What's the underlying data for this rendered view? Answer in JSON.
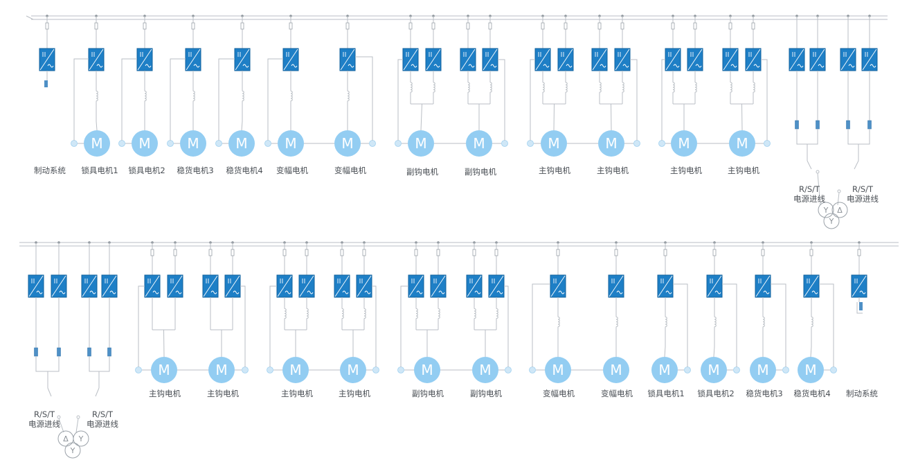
{
  "diagram": {
    "title": "",
    "colors": {
      "line": "#b9bec4",
      "inverter": "#1e7fc6",
      "inverter_edge": "#12609c",
      "motor": "#93cdf2",
      "text": "#4a4f55"
    },
    "motor_symbol": "M",
    "inverter_symbol": "inverter-icon",
    "rows": [
      {
        "name": "top-row",
        "groups": [
          {
            "label": "制动系统",
            "kind": "brake"
          },
          {
            "label": "锁具电机1",
            "kind": "single"
          },
          {
            "label": "锁具电机2",
            "kind": "single"
          },
          {
            "label": "稳货电机3",
            "kind": "single"
          },
          {
            "label": "稳货电机4",
            "kind": "single"
          },
          {
            "label": "变幅电机",
            "kind": "single"
          },
          {
            "label": "变幅电机",
            "kind": "single"
          },
          {
            "label": "副钩电机",
            "kind": "double"
          },
          {
            "label": "副钩电机",
            "kind": "double"
          },
          {
            "label": "主钩电机",
            "kind": "double"
          },
          {
            "label": "主钩电机",
            "kind": "double"
          },
          {
            "label": "主钩电机",
            "kind": "double"
          },
          {
            "label": "主钩电机",
            "kind": "double"
          }
        ],
        "sources": [
          {
            "label_line1": "R/S/T",
            "label_line2": "电源进线"
          },
          {
            "label_line1": "R/S/T",
            "label_line2": "电源进线"
          }
        ],
        "transformer": {
          "windings": [
            "Y",
            "Δ",
            "Y"
          ]
        }
      },
      {
        "name": "bottom-row",
        "groups": [
          {
            "label": "主钩电机",
            "kind": "double"
          },
          {
            "label": "主钩电机",
            "kind": "double"
          },
          {
            "label": "主钩电机",
            "kind": "double"
          },
          {
            "label": "主钩电机",
            "kind": "double"
          },
          {
            "label": "副钩电机",
            "kind": "double"
          },
          {
            "label": "副钩电机",
            "kind": "double"
          },
          {
            "label": "变幅电机",
            "kind": "single"
          },
          {
            "label": "变幅电机",
            "kind": "single"
          },
          {
            "label": "锁具电机1",
            "kind": "single"
          },
          {
            "label": "锁具电机2",
            "kind": "single"
          },
          {
            "label": "稳货电机3",
            "kind": "single"
          },
          {
            "label": "稳货电机4",
            "kind": "single"
          },
          {
            "label": "制动系统",
            "kind": "brake"
          }
        ],
        "sources": [
          {
            "label_line1": "R/S/T",
            "label_line2": "电源进线"
          },
          {
            "label_line1": "R/S/T",
            "label_line2": "电源进线"
          }
        ],
        "transformer": {
          "windings": [
            "Δ",
            "Y",
            "Y"
          ]
        }
      }
    ]
  }
}
